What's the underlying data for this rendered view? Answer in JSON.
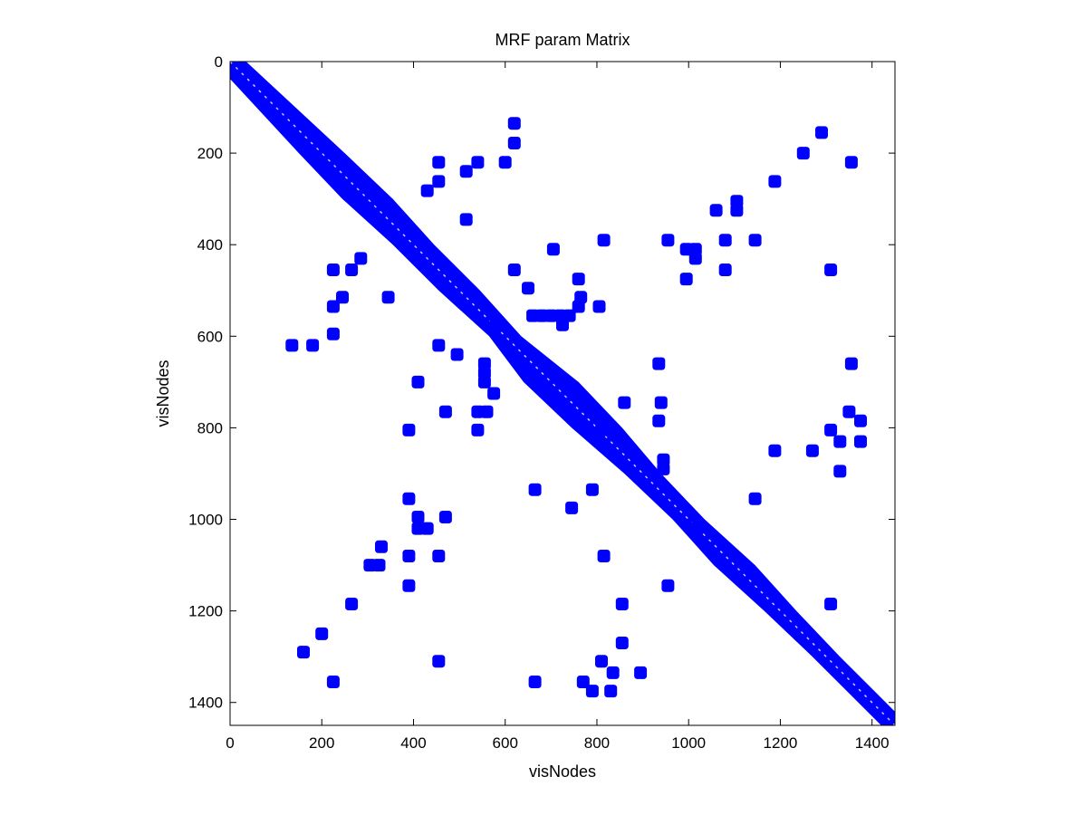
{
  "chart_data": {
    "type": "scatter",
    "title": "MRF param Matrix",
    "xlabel": "visNodes",
    "ylabel": "visNodes",
    "xlim": [
      0,
      1450
    ],
    "ylim": [
      1450,
      0
    ],
    "x_ticks": [
      0,
      200,
      400,
      600,
      800,
      1000,
      1200,
      1400
    ],
    "y_ticks": [
      0,
      200,
      400,
      600,
      800,
      1000,
      1200,
      1400
    ],
    "y_axis_reversed": true,
    "grid": false,
    "marker_color": "#0000ff",
    "diagonal": {
      "description": "dense band of nonzero entries along the main diagonal",
      "center_line": [
        [
          0,
          0
        ],
        [
          1450,
          1450
        ]
      ],
      "half_width_profile": [
        {
          "at": 0,
          "half_width": 35
        },
        {
          "at": 200,
          "half_width": 50
        },
        {
          "at": 300,
          "half_width": 55
        },
        {
          "at": 400,
          "half_width": 45
        },
        {
          "at": 500,
          "half_width": 45
        },
        {
          "at": 600,
          "half_width": 35
        },
        {
          "at": 700,
          "half_width": 60
        },
        {
          "at": 800,
          "half_width": 55
        },
        {
          "at": 900,
          "half_width": 40
        },
        {
          "at": 1000,
          "half_width": 35
        },
        {
          "at": 1100,
          "half_width": 45
        },
        {
          "at": 1200,
          "half_width": 35
        },
        {
          "at": 1300,
          "half_width": 30
        },
        {
          "at": 1450,
          "half_width": 30
        }
      ]
    },
    "points": [
      [
        620,
        135
      ],
      [
        620,
        178
      ],
      [
        1290,
        155
      ],
      [
        1250,
        200
      ],
      [
        1355,
        220
      ],
      [
        455,
        220
      ],
      [
        540,
        220
      ],
      [
        600,
        220
      ],
      [
        515,
        240
      ],
      [
        1188,
        262
      ],
      [
        455,
        262
      ],
      [
        430,
        282
      ],
      [
        1105,
        305
      ],
      [
        1105,
        325
      ],
      [
        1060,
        325
      ],
      [
        515,
        345
      ],
      [
        1080,
        390
      ],
      [
        1145,
        390
      ],
      [
        955,
        390
      ],
      [
        815,
        390
      ],
      [
        705,
        410
      ],
      [
        995,
        410
      ],
      [
        1015,
        410
      ],
      [
        1015,
        430
      ],
      [
        995,
        475
      ],
      [
        1080,
        455
      ],
      [
        1310,
        455
      ],
      [
        225,
        455
      ],
      [
        265,
        455
      ],
      [
        285,
        430
      ],
      [
        620,
        455
      ],
      [
        760,
        475
      ],
      [
        650,
        495
      ],
      [
        245,
        515
      ],
      [
        345,
        515
      ],
      [
        225,
        535
      ],
      [
        765,
        515
      ],
      [
        805,
        535
      ],
      [
        760,
        535
      ],
      [
        660,
        555
      ],
      [
        680,
        555
      ],
      [
        700,
        555
      ],
      [
        720,
        555
      ],
      [
        740,
        555
      ],
      [
        725,
        575
      ],
      [
        580,
        575
      ],
      [
        225,
        595
      ],
      [
        135,
        620
      ],
      [
        180,
        620
      ],
      [
        455,
        620
      ],
      [
        495,
        640
      ],
      [
        555,
        660
      ],
      [
        555,
        680
      ],
      [
        555,
        700
      ],
      [
        935,
        660
      ],
      [
        1355,
        660
      ],
      [
        410,
        700
      ],
      [
        575,
        725
      ],
      [
        860,
        745
      ],
      [
        940,
        745
      ],
      [
        1350,
        765
      ],
      [
        470,
        765
      ],
      [
        540,
        765
      ],
      [
        560,
        765
      ],
      [
        935,
        785
      ],
      [
        1375,
        785
      ],
      [
        390,
        805
      ],
      [
        540,
        805
      ],
      [
        810,
        805
      ],
      [
        1310,
        805
      ],
      [
        1330,
        830
      ],
      [
        1375,
        830
      ],
      [
        1270,
        850
      ],
      [
        1188,
        850
      ],
      [
        945,
        870
      ],
      [
        945,
        890
      ],
      [
        1330,
        895
      ],
      [
        665,
        935
      ],
      [
        790,
        935
      ],
      [
        390,
        955
      ],
      [
        1145,
        955
      ],
      [
        745,
        975
      ],
      [
        410,
        995
      ],
      [
        470,
        995
      ],
      [
        410,
        1020
      ],
      [
        430,
        1020
      ],
      [
        1015,
        1020
      ],
      [
        390,
        1080
      ],
      [
        455,
        1080
      ],
      [
        330,
        1060
      ],
      [
        815,
        1080
      ],
      [
        305,
        1100
      ],
      [
        325,
        1100
      ],
      [
        955,
        1145
      ],
      [
        390,
        1145
      ],
      [
        265,
        1185
      ],
      [
        855,
        1185
      ],
      [
        1310,
        1185
      ],
      [
        200,
        1250
      ],
      [
        855,
        1270
      ],
      [
        160,
        1290
      ],
      [
        810,
        1310
      ],
      [
        455,
        1310
      ],
      [
        835,
        1335
      ],
      [
        895,
        1335
      ],
      [
        225,
        1355
      ],
      [
        665,
        1355
      ],
      [
        770,
        1355
      ],
      [
        790,
        1375
      ],
      [
        830,
        1375
      ]
    ]
  }
}
